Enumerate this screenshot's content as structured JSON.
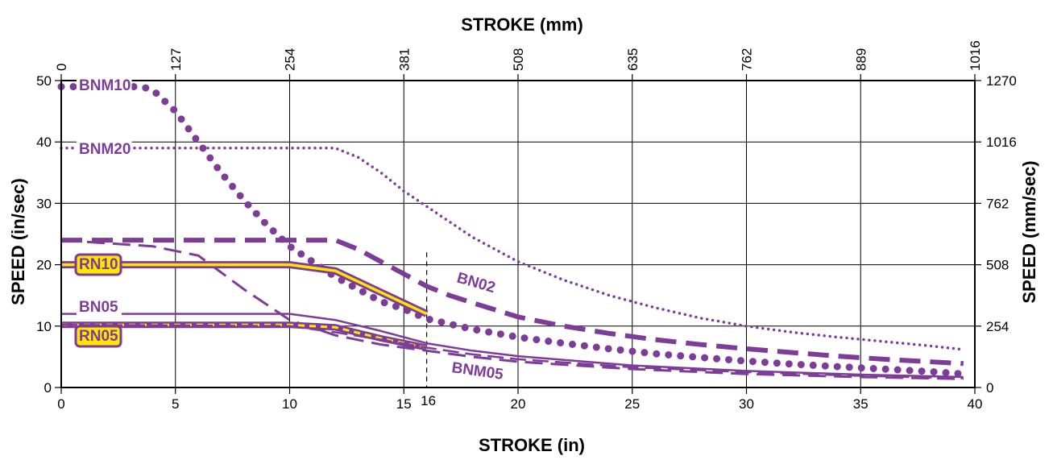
{
  "chart_data": {
    "type": "line",
    "title": "",
    "xlabel": "STROKE (in)",
    "ylabel": "SPEED (in/sec)",
    "x2label": "STROKE (mm)",
    "y2label": "SPEED (mm/sec)",
    "xlim": [
      0,
      40
    ],
    "ylim": [
      0,
      50
    ],
    "x_ticks": [
      "0",
      "5",
      "10",
      "15",
      "20",
      "25",
      "30",
      "35",
      "40"
    ],
    "y_ticks": [
      "0",
      "10",
      "20",
      "30",
      "40",
      "50"
    ],
    "x2_ticks": [
      "0",
      "127",
      "254",
      "381",
      "508",
      "635",
      "762",
      "889",
      "1016"
    ],
    "y2_ticks": [
      "0",
      "254",
      "508",
      "762",
      "1016",
      "1270"
    ],
    "marker_label": "16",
    "grid": true,
    "colors": {
      "series": "#7d3c98",
      "highlight": "#ffe600",
      "text": "#000000"
    },
    "series": [
      {
        "name": "BNM10",
        "style": "dotted-heavy",
        "x": [
          0,
          2,
          3.5,
          4,
          5,
          6,
          7,
          8,
          9,
          10,
          11,
          12,
          13,
          14,
          15,
          16,
          18,
          20,
          22,
          24,
          26,
          28,
          30,
          32,
          34,
          36,
          38,
          39.5
        ],
        "y": [
          49,
          49,
          49,
          48.5,
          45,
          40,
          35,
          30.5,
          26.5,
          23,
          20.5,
          18,
          16,
          14,
          12.8,
          11.2,
          9.5,
          8.2,
          7.2,
          6.3,
          5.5,
          4.9,
          4.3,
          3.8,
          3.4,
          3,
          2.6,
          2.2
        ]
      },
      {
        "name": "BNM20",
        "style": "dotted-thin",
        "x": [
          0,
          4,
          12,
          13,
          14,
          15,
          16,
          17,
          18,
          19,
          20,
          22,
          24,
          26,
          28,
          30,
          32,
          34,
          36,
          38,
          39.5
        ],
        "y": [
          39,
          39,
          39,
          37.5,
          35,
          32,
          29.5,
          27,
          24.5,
          22.5,
          20.5,
          17.5,
          15,
          13,
          11.3,
          10,
          9,
          8.2,
          7.5,
          6.8,
          6.2
        ]
      },
      {
        "name": "BN02",
        "style": "dashed-heavy",
        "x": [
          0,
          12,
          13,
          14,
          15,
          16,
          17,
          18,
          20,
          22,
          24,
          26,
          28,
          30,
          32,
          34,
          36,
          38,
          39.5
        ],
        "y": [
          24,
          24,
          22.5,
          20.5,
          18.5,
          16.5,
          15,
          13.8,
          11.5,
          10,
          8.8,
          7.8,
          7,
          6.3,
          5.7,
          5.1,
          4.6,
          4.2,
          3.9
        ]
      },
      {
        "name": "",
        "style": "dashed-medium",
        "x": [
          0,
          4,
          6,
          8,
          10,
          12,
          14,
          16,
          18,
          20,
          25,
          30,
          35,
          39.5
        ],
        "y": [
          24,
          23,
          21.5,
          16,
          11,
          8.5,
          7,
          6,
          5,
          4.2,
          3,
          2.2,
          1.7,
          1.4
        ]
      },
      {
        "name": "RN10",
        "style": "solid-highlight",
        "x": [
          0,
          10,
          12,
          14,
          16
        ],
        "y": [
          20,
          20,
          19,
          15.5,
          12
        ]
      },
      {
        "name": "BN05",
        "style": "solid",
        "x": [
          0,
          10,
          12,
          14,
          16,
          18,
          20,
          25,
          30,
          35,
          39.5
        ],
        "y": [
          12,
          12,
          11,
          9.2,
          7.2,
          6,
          5.1,
          3.6,
          2.7,
          2.1,
          1.7
        ]
      },
      {
        "name": "RN05",
        "style": "dashed-highlight",
        "x": [
          0,
          10,
          12,
          14,
          16
        ],
        "y": [
          10.2,
          10.2,
          9.8,
          8,
          6.5
        ]
      },
      {
        "name": "BNM05",
        "style": "dashed-thin",
        "x": [
          0,
          10,
          12,
          14,
          16,
          18,
          20,
          25,
          30,
          35,
          39.5
        ],
        "y": [
          10.2,
          10,
          9,
          7.8,
          6.5,
          5.4,
          4.6,
          3.3,
          2.5,
          1.9,
          1.5
        ]
      }
    ]
  }
}
